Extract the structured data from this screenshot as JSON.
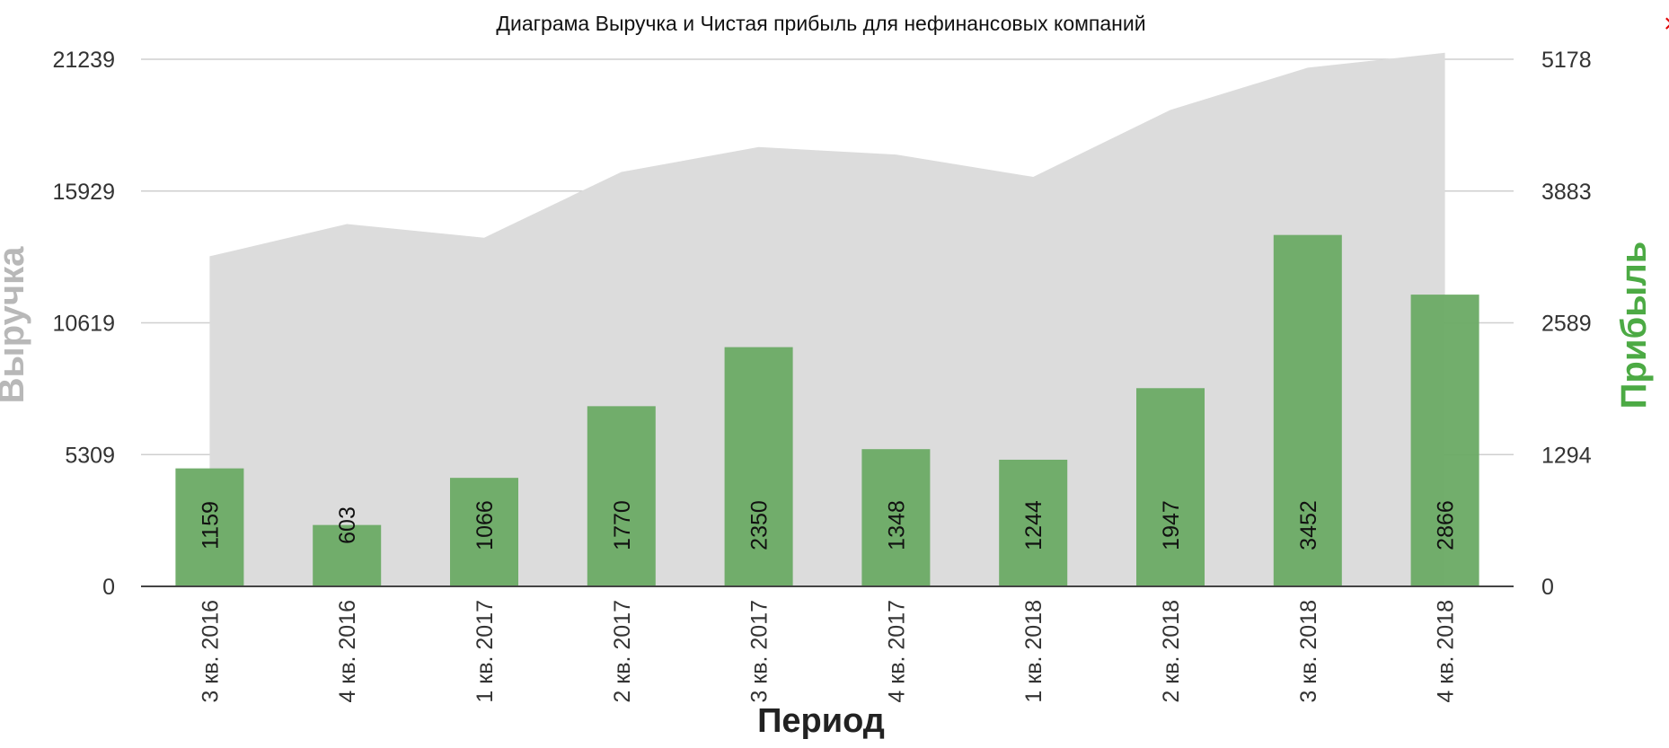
{
  "chart_data": {
    "type": "bar",
    "title": "Диаграма Выручка и Чистая прибыль для нефинансовых компаний",
    "xlabel": "Период",
    "ylabel_left": "Выручка",
    "ylabel_right": "Прибыль",
    "categories": [
      "3 кв. 2016",
      "4 кв. 2016",
      "1 кв. 2017",
      "2 кв. 2017",
      "3 кв. 2017",
      "4 кв. 2017",
      "1 кв. 2018",
      "2 кв. 2018",
      "3 кв. 2018",
      "4 кв. 2018"
    ],
    "series": [
      {
        "name": "Выручка",
        "type": "area",
        "axis": "left",
        "color": "#dcdcdc",
        "values": [
          13300,
          14600,
          14050,
          16700,
          17700,
          17400,
          16500,
          19200,
          20900,
          21500
        ]
      },
      {
        "name": "Прибыль",
        "type": "bar",
        "axis": "right",
        "color": "#6aaa64",
        "values": [
          1159,
          603,
          1066,
          1770,
          2350,
          1348,
          1244,
          1947,
          3452,
          2866
        ]
      }
    ],
    "y_left_ticks": [
      "21239",
      "15929",
      "10619",
      "5309",
      "0"
    ],
    "y_right_ticks": [
      "5178",
      "3883",
      "2589",
      "1294",
      "0"
    ],
    "ylim_left": [
      0,
      21239
    ],
    "ylim_right": [
      0,
      5178
    ],
    "grid": true,
    "legend": "none"
  },
  "ui": {
    "close_symbol": "×"
  }
}
